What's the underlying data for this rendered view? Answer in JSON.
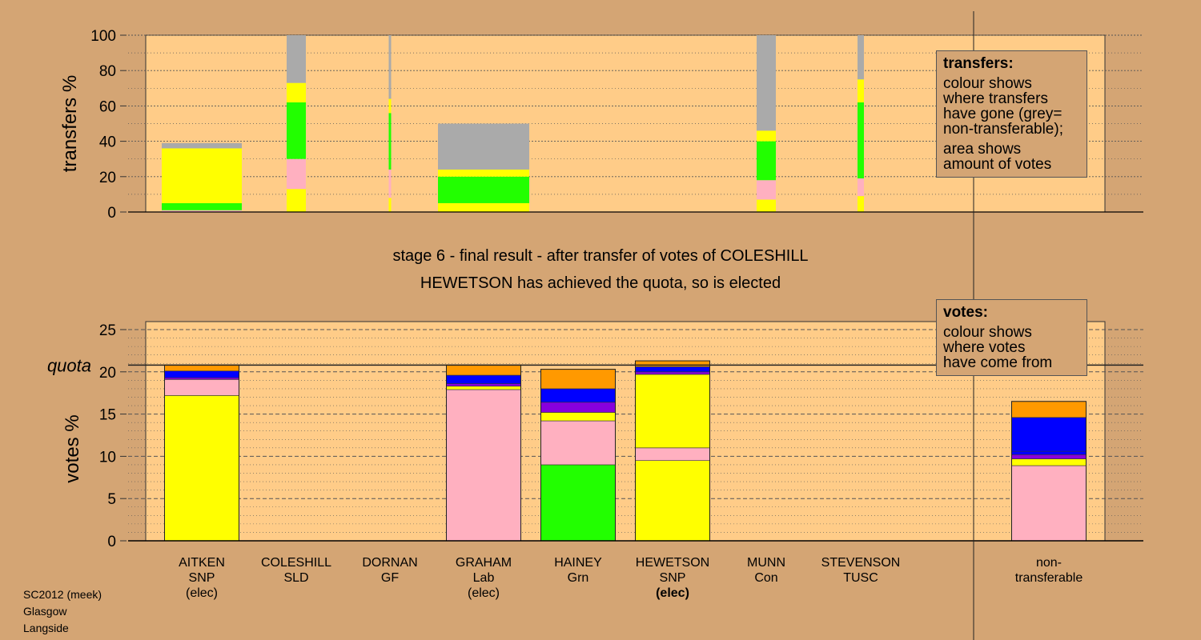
{
  "header": {
    "line1": "stage 6 - final result - after transfer of votes of COLESHILL",
    "line2": "HEWETSON has achieved the quota, so is elected"
  },
  "colors": {
    "background": "#d4a574",
    "panel": "#ffcc88",
    "yellow": "#ffff00",
    "pink": "#ffb0c0",
    "green": "#22ff00",
    "blue": "#0000ff",
    "purple": "#8800dd",
    "orange": "#ff9900",
    "grey": "#aaaaaa"
  },
  "legend_transfers": {
    "title": "transfers:",
    "p1": [
      "colour shows",
      "where transfers",
      "have gone (grey=",
      "non-transferable);"
    ],
    "p2": [
      "area shows",
      "amount of votes"
    ]
  },
  "legend_votes": {
    "title": "votes:",
    "p1": [
      "colour shows",
      "where votes",
      "have come from"
    ]
  },
  "candidates": [
    {
      "name": "AITKEN",
      "party": "SNP",
      "status": "(elec)",
      "bold": false
    },
    {
      "name": "COLESHILL",
      "party": "SLD",
      "status": "",
      "bold": false
    },
    {
      "name": "DORNAN",
      "party": "GF",
      "status": "",
      "bold": false
    },
    {
      "name": "GRAHAM",
      "party": "Lab",
      "status": "(elec)",
      "bold": false
    },
    {
      "name": "HAINEY",
      "party": "Grn",
      "status": "",
      "bold": false
    },
    {
      "name": "HEWETSON",
      "party": "SNP",
      "status": "(elec)",
      "bold": true
    },
    {
      "name": "MUNN",
      "party": "Con",
      "status": "",
      "bold": false
    },
    {
      "name": "STEVENSON",
      "party": "TUSC",
      "status": "",
      "bold": false
    }
  ],
  "nontransferable_label": [
    "non-",
    "transferable"
  ],
  "footer": [
    "SC2012 (meek)",
    "Glasgow",
    "Langside"
  ],
  "chart_data": [
    {
      "type": "bar",
      "name": "transfers",
      "ylabel": "transfers %",
      "ylim": [
        0,
        100
      ],
      "yticks": [
        0,
        20,
        40,
        60,
        80,
        100
      ],
      "bars": [
        {
          "candidate": "AITKEN",
          "width": 0.5,
          "segments": [
            [
              "pink",
              0,
              1
            ],
            [
              "green",
              1,
              5
            ],
            [
              "yellow",
              5,
              36
            ],
            [
              "grey",
              36,
              39
            ]
          ]
        },
        {
          "candidate": "COLESHILL",
          "width": 0.12,
          "segments": [
            [
              "yellow",
              0,
              13
            ],
            [
              "pink",
              13,
              30
            ],
            [
              "green",
              30,
              62
            ],
            [
              "yellow",
              62,
              73
            ],
            [
              "grey",
              73,
              100
            ]
          ]
        },
        {
          "candidate": "DORNAN",
          "width": 0.015,
          "segments": [
            [
              "yellow",
              0,
              8
            ],
            [
              "pink",
              8,
              24
            ],
            [
              "green",
              24,
              56
            ],
            [
              "yellow",
              56,
              64
            ],
            [
              "grey",
              64,
              100
            ]
          ]
        },
        {
          "candidate": "GRAHAM",
          "width": 0.57,
          "segments": [
            [
              "yellow",
              0,
              5
            ],
            [
              "green",
              5,
              20
            ],
            [
              "yellow",
              20,
              24
            ],
            [
              "grey",
              24,
              50
            ]
          ]
        },
        {
          "candidate": "MUNN",
          "width": 0.12,
          "segments": [
            [
              "yellow",
              0,
              7
            ],
            [
              "pink",
              7,
              18
            ],
            [
              "green",
              18,
              40
            ],
            [
              "yellow",
              40,
              46
            ],
            [
              "grey",
              46,
              100
            ]
          ]
        },
        {
          "candidate": "STEVENSON",
          "width": 0.04,
          "segments": [
            [
              "yellow",
              0,
              9
            ],
            [
              "pink",
              9,
              19
            ],
            [
              "green",
              19,
              62
            ],
            [
              "yellow",
              62,
              75
            ],
            [
              "grey",
              75,
              100
            ]
          ]
        }
      ]
    },
    {
      "type": "bar",
      "name": "votes",
      "ylabel": "votes %",
      "ylim": [
        0,
        25
      ],
      "yticks": [
        0,
        5,
        10,
        15,
        20,
        25
      ],
      "quota": 20.8,
      "quota_label": "quota",
      "bars": [
        {
          "candidate": "AITKEN",
          "segments": [
            [
              "yellow",
              0,
              17.2
            ],
            [
              "pink",
              17.2,
              19.1
            ],
            [
              "purple",
              19.1,
              19.3
            ],
            [
              "blue",
              19.3,
              20.1
            ],
            [
              "orange",
              20.1,
              20.8
            ]
          ]
        },
        {
          "candidate": "COLESHILL",
          "segments": []
        },
        {
          "candidate": "DORNAN",
          "segments": []
        },
        {
          "candidate": "GRAHAM",
          "segments": [
            [
              "pink",
              0,
              17.9
            ],
            [
              "yellow",
              17.9,
              18.3
            ],
            [
              "purple",
              18.3,
              18.6
            ],
            [
              "blue",
              18.6,
              19.6
            ],
            [
              "orange",
              19.6,
              20.8
            ]
          ]
        },
        {
          "candidate": "HAINEY",
          "segments": [
            [
              "green",
              0,
              9.0
            ],
            [
              "pink",
              9.0,
              14.2
            ],
            [
              "yellow",
              14.2,
              15.2
            ],
            [
              "purple",
              15.2,
              16.4
            ],
            [
              "blue",
              16.4,
              18.0
            ],
            [
              "orange",
              18.0,
              20.3
            ]
          ]
        },
        {
          "candidate": "HEWETSON",
          "segments": [
            [
              "yellow",
              0,
              9.5
            ],
            [
              "pink",
              9.5,
              11.0
            ],
            [
              "yellow",
              11.0,
              19.7
            ],
            [
              "purple",
              19.7,
              20.0
            ],
            [
              "blue",
              20.0,
              20.6
            ],
            [
              "orange",
              20.6,
              21.3
            ]
          ]
        },
        {
          "candidate": "MUNN",
          "segments": []
        },
        {
          "candidate": "STEVENSON",
          "segments": []
        },
        {
          "candidate": "non-transferable",
          "segments": [
            [
              "pink",
              0,
              8.9
            ],
            [
              "yellow",
              8.9,
              9.7
            ],
            [
              "purple",
              9.7,
              10.2
            ],
            [
              "blue",
              10.2,
              10.6
            ],
            [
              "blue",
              10.6,
              14.6
            ],
            [
              "orange",
              14.6,
              16.5
            ]
          ]
        }
      ]
    }
  ]
}
